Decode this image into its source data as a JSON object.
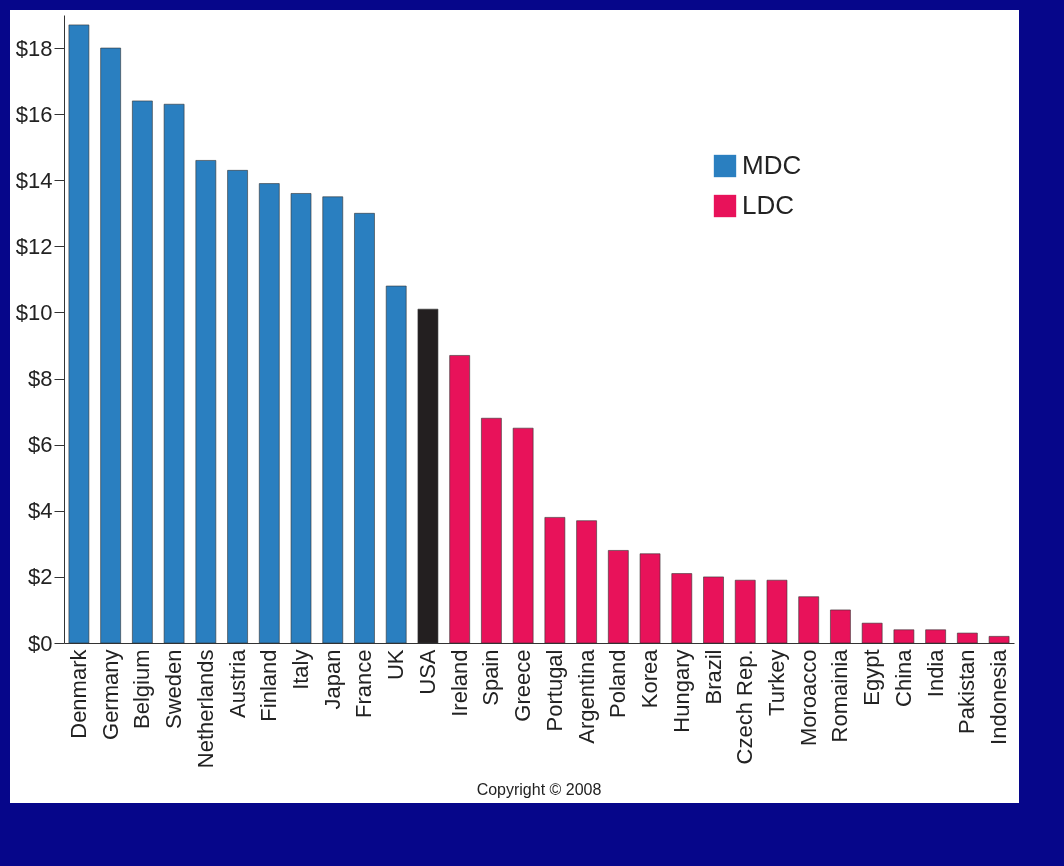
{
  "chart_data": {
    "type": "bar",
    "categories": [
      "Denmark",
      "Germany",
      "Belgium",
      "Sweden",
      "Netherlands",
      "Austria",
      "Finland",
      "Italy",
      "Japan",
      "France",
      "UK",
      "USA",
      "Ireland",
      "Spain",
      "Greece",
      "Portugal",
      "Argentina",
      "Poland",
      "Korea",
      "Hungary",
      "Brazil",
      "Czech Rep.",
      "Turkey",
      "Moroacco",
      "Romainia",
      "Egypt",
      "China",
      "India",
      "Pakistan",
      "Indonesia"
    ],
    "series": [
      {
        "name": "MDC",
        "color": "#2a7fc0",
        "values": [
          18.7,
          18.0,
          16.4,
          16.3,
          14.6,
          14.3,
          13.9,
          13.6,
          13.5,
          13.0,
          10.8,
          null,
          null,
          null,
          null,
          null,
          null,
          null,
          null,
          null,
          null,
          null,
          null,
          null,
          null,
          null,
          null,
          null,
          null,
          null
        ]
      },
      {
        "color": "#231f20",
        "values": [
          null,
          null,
          null,
          null,
          null,
          null,
          null,
          null,
          null,
          null,
          null,
          10.1,
          null,
          null,
          null,
          null,
          null,
          null,
          null,
          null,
          null,
          null,
          null,
          null,
          null,
          null,
          null,
          null,
          null,
          null
        ]
      },
      {
        "name": "LDC",
        "color": "#e8125a",
        "values": [
          null,
          null,
          null,
          null,
          null,
          null,
          null,
          null,
          null,
          null,
          null,
          null,
          8.7,
          6.8,
          6.5,
          3.8,
          3.7,
          2.8,
          2.7,
          2.1,
          2.0,
          1.9,
          1.9,
          1.4,
          1.0,
          0.6,
          0.4,
          0.4,
          0.3,
          0.2
        ]
      }
    ],
    "ylim": [
      0,
      19
    ],
    "yticks": [
      {
        "value": 0,
        "label": "$0"
      },
      {
        "value": 2,
        "label": "$2"
      },
      {
        "value": 4,
        "label": "$4"
      },
      {
        "value": 6,
        "label": "$6"
      },
      {
        "value": 8,
        "label": "$8"
      },
      {
        "value": 10,
        "label": "$10"
      },
      {
        "value": 12,
        "label": "$12"
      },
      {
        "value": 14,
        "label": "$14"
      },
      {
        "value": 16,
        "label": "$16"
      },
      {
        "value": 18,
        "label": "$18"
      }
    ],
    "legend": "top right",
    "annotations": [
      "Copyright © 2008"
    ]
  }
}
